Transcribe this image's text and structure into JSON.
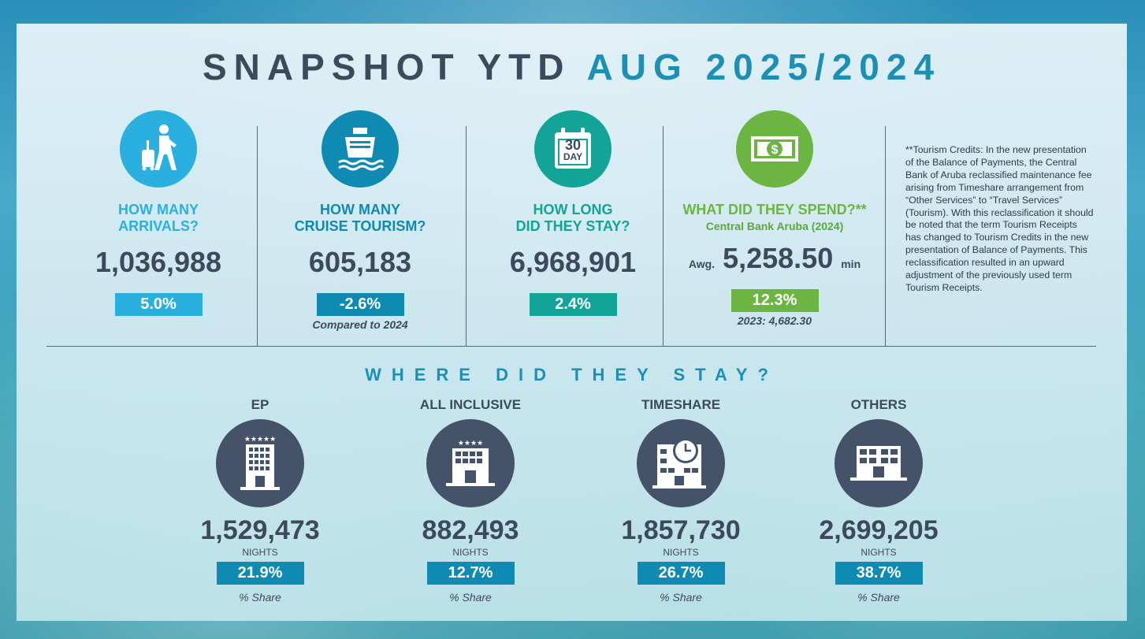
{
  "title": {
    "part1": "SNAPSHOT YTD",
    "part2": "AUG 2025/2024"
  },
  "colors": {
    "dark": "#3d4a5e",
    "blue": "#1b8fb5",
    "lightblue": "#2ab0df",
    "teal_dark": "#0f8ab2",
    "green_teal": "#12a597",
    "green": "#6db543"
  },
  "stats": [
    {
      "icon": "traveler-icon",
      "question_line1": "HOW MANY",
      "question_line2": "ARRIVALS?",
      "value": "1,036,988",
      "pct": "5.0%",
      "note": ""
    },
    {
      "icon": "cruise-ship-icon",
      "question_line1": "HOW MANY",
      "question_line2": "CRUISE TOURISM?",
      "value": "605,183",
      "pct": "-2.6%",
      "note": "Compared to 2024"
    },
    {
      "icon": "calendar-icon",
      "calendar_number": "30",
      "calendar_label": "DAY",
      "question_line1": "HOW LONG",
      "question_line2": "DID THEY STAY?",
      "value": "6,968,901",
      "pct": "2.4%",
      "note": ""
    },
    {
      "icon": "money-icon",
      "question_line1": "WHAT DID THEY SPEND?**",
      "question_line2": "Central Bank Aruba (2024)",
      "value_prefix": "Awg.",
      "value": "5,258.50",
      "value_suffix": "min",
      "pct": "12.3%",
      "note": "2023: 4,682.30"
    }
  ],
  "credits": "**Tourism Credits: In the new presentation of the Balance of Payments, the Central Bank of Aruba reclassified maintenance fee arising from Timeshare arrangement from “Other Services” to “Travel Services” (Tourism). With this reclassification it should be noted that the term Tourism Receipts has changed to Tourism Credits in the new presentation of Balance of Payments. This reclassification resulted in an upward adjustment of the previously used term Tourism Receipts.",
  "stay_section_title": "WHERE DID THEY STAY?",
  "stays": [
    {
      "label": "EP",
      "icon": "hotel-five-star-icon",
      "value": "1,529,473",
      "unit": "NIGHTS",
      "pct": "21.9%",
      "share": "% Share"
    },
    {
      "label": "ALL INCLUSIVE",
      "icon": "hotel-four-star-icon",
      "value": "882,493",
      "unit": "NIGHTS",
      "pct": "12.7%",
      "share": "% Share"
    },
    {
      "label": "TIMESHARE",
      "icon": "timeshare-clock-icon",
      "value": "1,857,730",
      "unit": "NIGHTS",
      "pct": "26.7%",
      "share": "% Share"
    },
    {
      "label": "OTHERS",
      "icon": "building-icon",
      "value": "2,699,205",
      "unit": "NIGHTS",
      "pct": "38.7%",
      "share": "% Share"
    }
  ]
}
